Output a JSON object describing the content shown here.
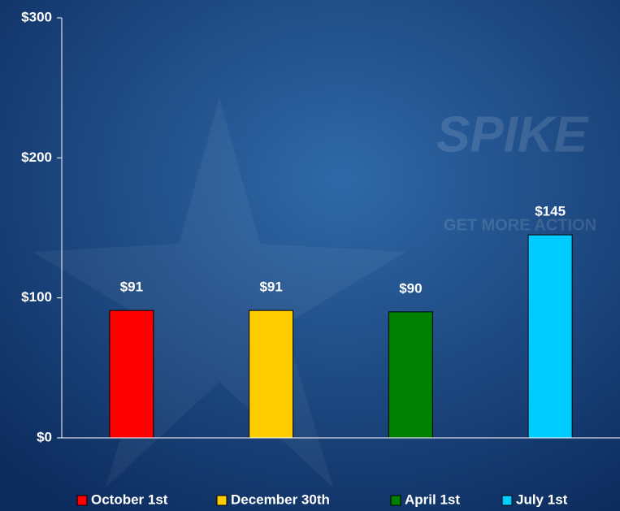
{
  "chart_data": {
    "type": "bar",
    "categories": [
      "October 1st",
      "December 30th",
      "April 1st",
      "July 1st"
    ],
    "values": [
      91,
      91,
      90,
      145
    ],
    "value_labels": [
      "$91",
      "$91",
      "$90",
      "$145"
    ],
    "colors": [
      "#ff0000",
      "#ffcc00",
      "#008000",
      "#00ccff"
    ],
    "ylim": [
      0,
      300
    ],
    "yticks": [
      {
        "value": 0,
        "label": "$0"
      },
      {
        "value": 100,
        "label": "$100"
      },
      {
        "value": 200,
        "label": "$200"
      },
      {
        "value": 300,
        "label": "$300"
      }
    ],
    "grid": false,
    "legend": "bottom"
  },
  "watermark": {
    "logo": "SPIKE",
    "tagline": "GET MORE ACTION"
  }
}
